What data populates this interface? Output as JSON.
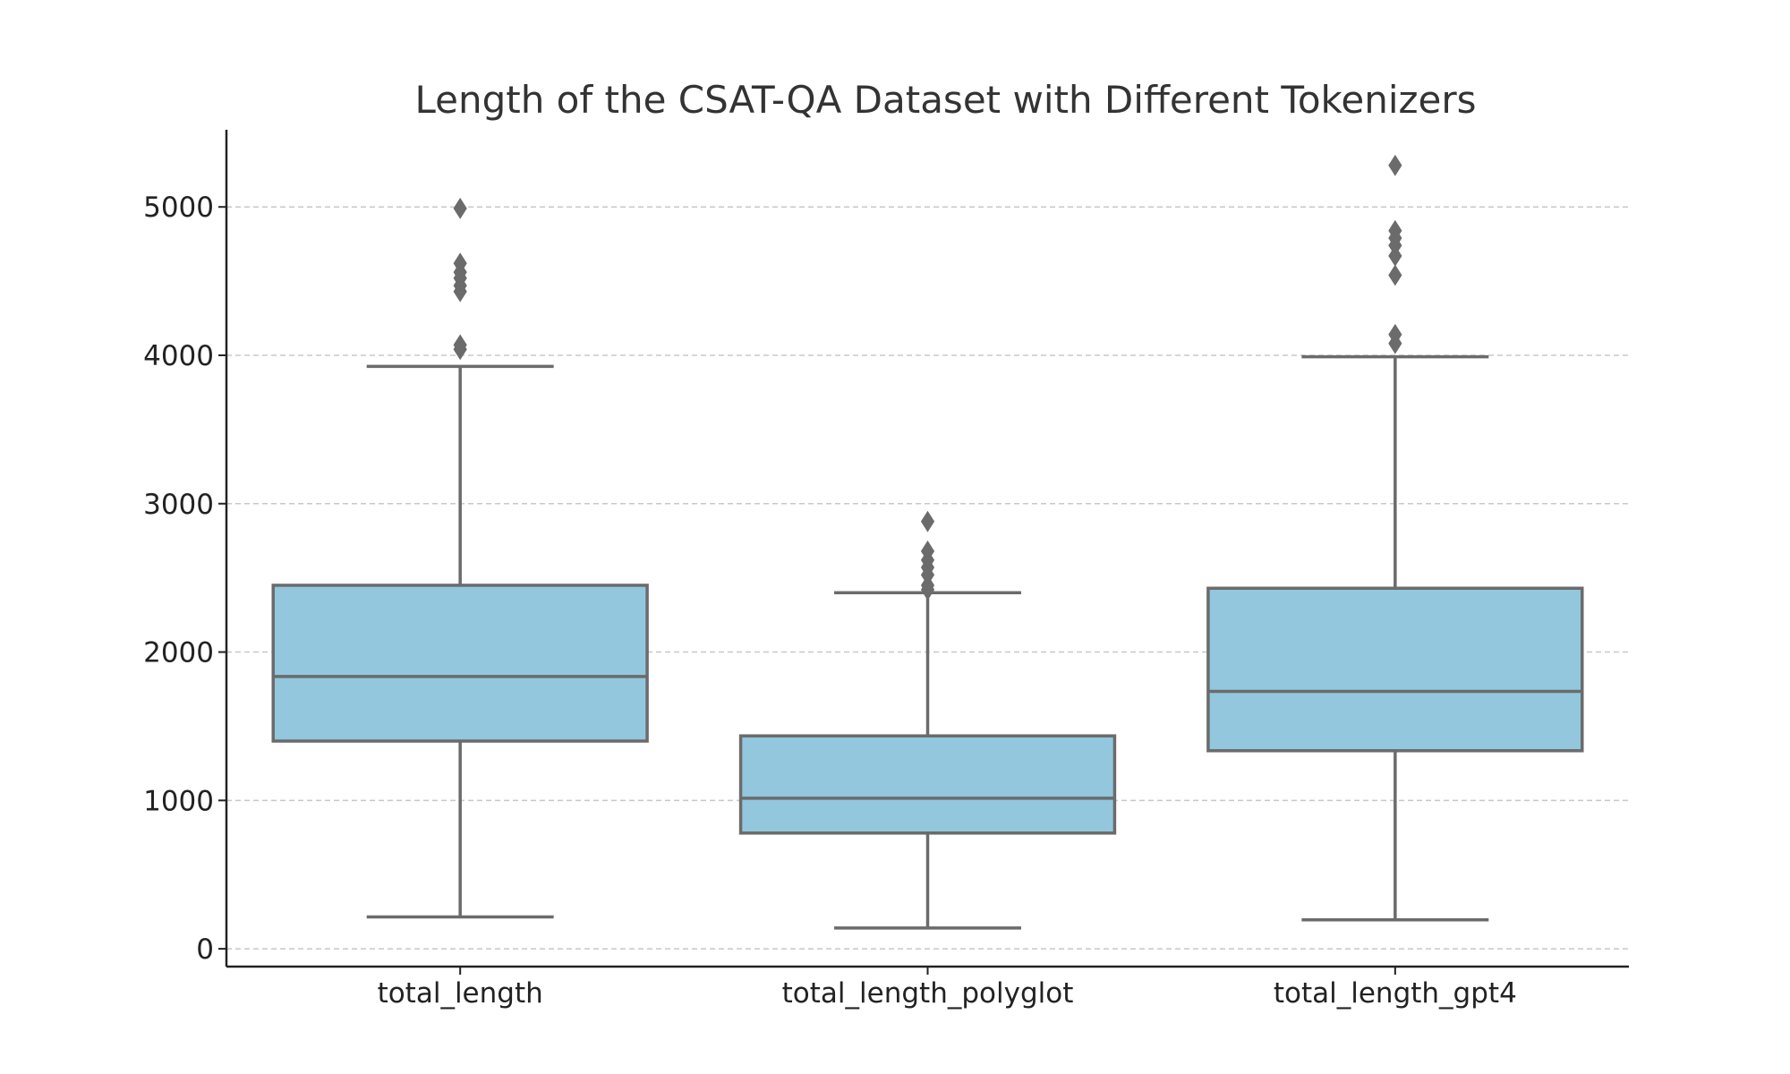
{
  "chart_data": {
    "type": "box",
    "title": "Length of the CSAT-QA Dataset with Different Tokenizers",
    "xlabel": "",
    "ylabel": "",
    "ylim": [
      -120,
      5520
    ],
    "yticks": [
      0,
      1000,
      2000,
      3000,
      4000,
      5000
    ],
    "grid": true,
    "colors": {
      "box_fill": "#92c7de",
      "box_edge": "#6b6b6b",
      "grid": "#c8c8c8",
      "axis": "#222222",
      "title": "#333333"
    },
    "categories": [
      "total_length",
      "total_length_polyglot",
      "total_length_gpt4"
    ],
    "series": [
      {
        "category": "total_length",
        "whisker_low": 215,
        "q1": 1400,
        "median": 1835,
        "q3": 2450,
        "whisker_high": 3925,
        "outliers": [
          4040,
          4070,
          4430,
          4470,
          4520,
          4560,
          4620,
          4990
        ]
      },
      {
        "category": "total_length_polyglot",
        "whisker_low": 140,
        "q1": 780,
        "median": 1015,
        "q3": 1435,
        "whisker_high": 2400,
        "outliers": [
          2420,
          2450,
          2520,
          2570,
          2620,
          2680,
          2880
        ]
      },
      {
        "category": "total_length_gpt4",
        "whisker_low": 195,
        "q1": 1335,
        "median": 1735,
        "q3": 2430,
        "whisker_high": 3990,
        "outliers": [
          4080,
          4140,
          4540,
          4670,
          4740,
          4790,
          4840,
          5280
        ]
      }
    ]
  }
}
